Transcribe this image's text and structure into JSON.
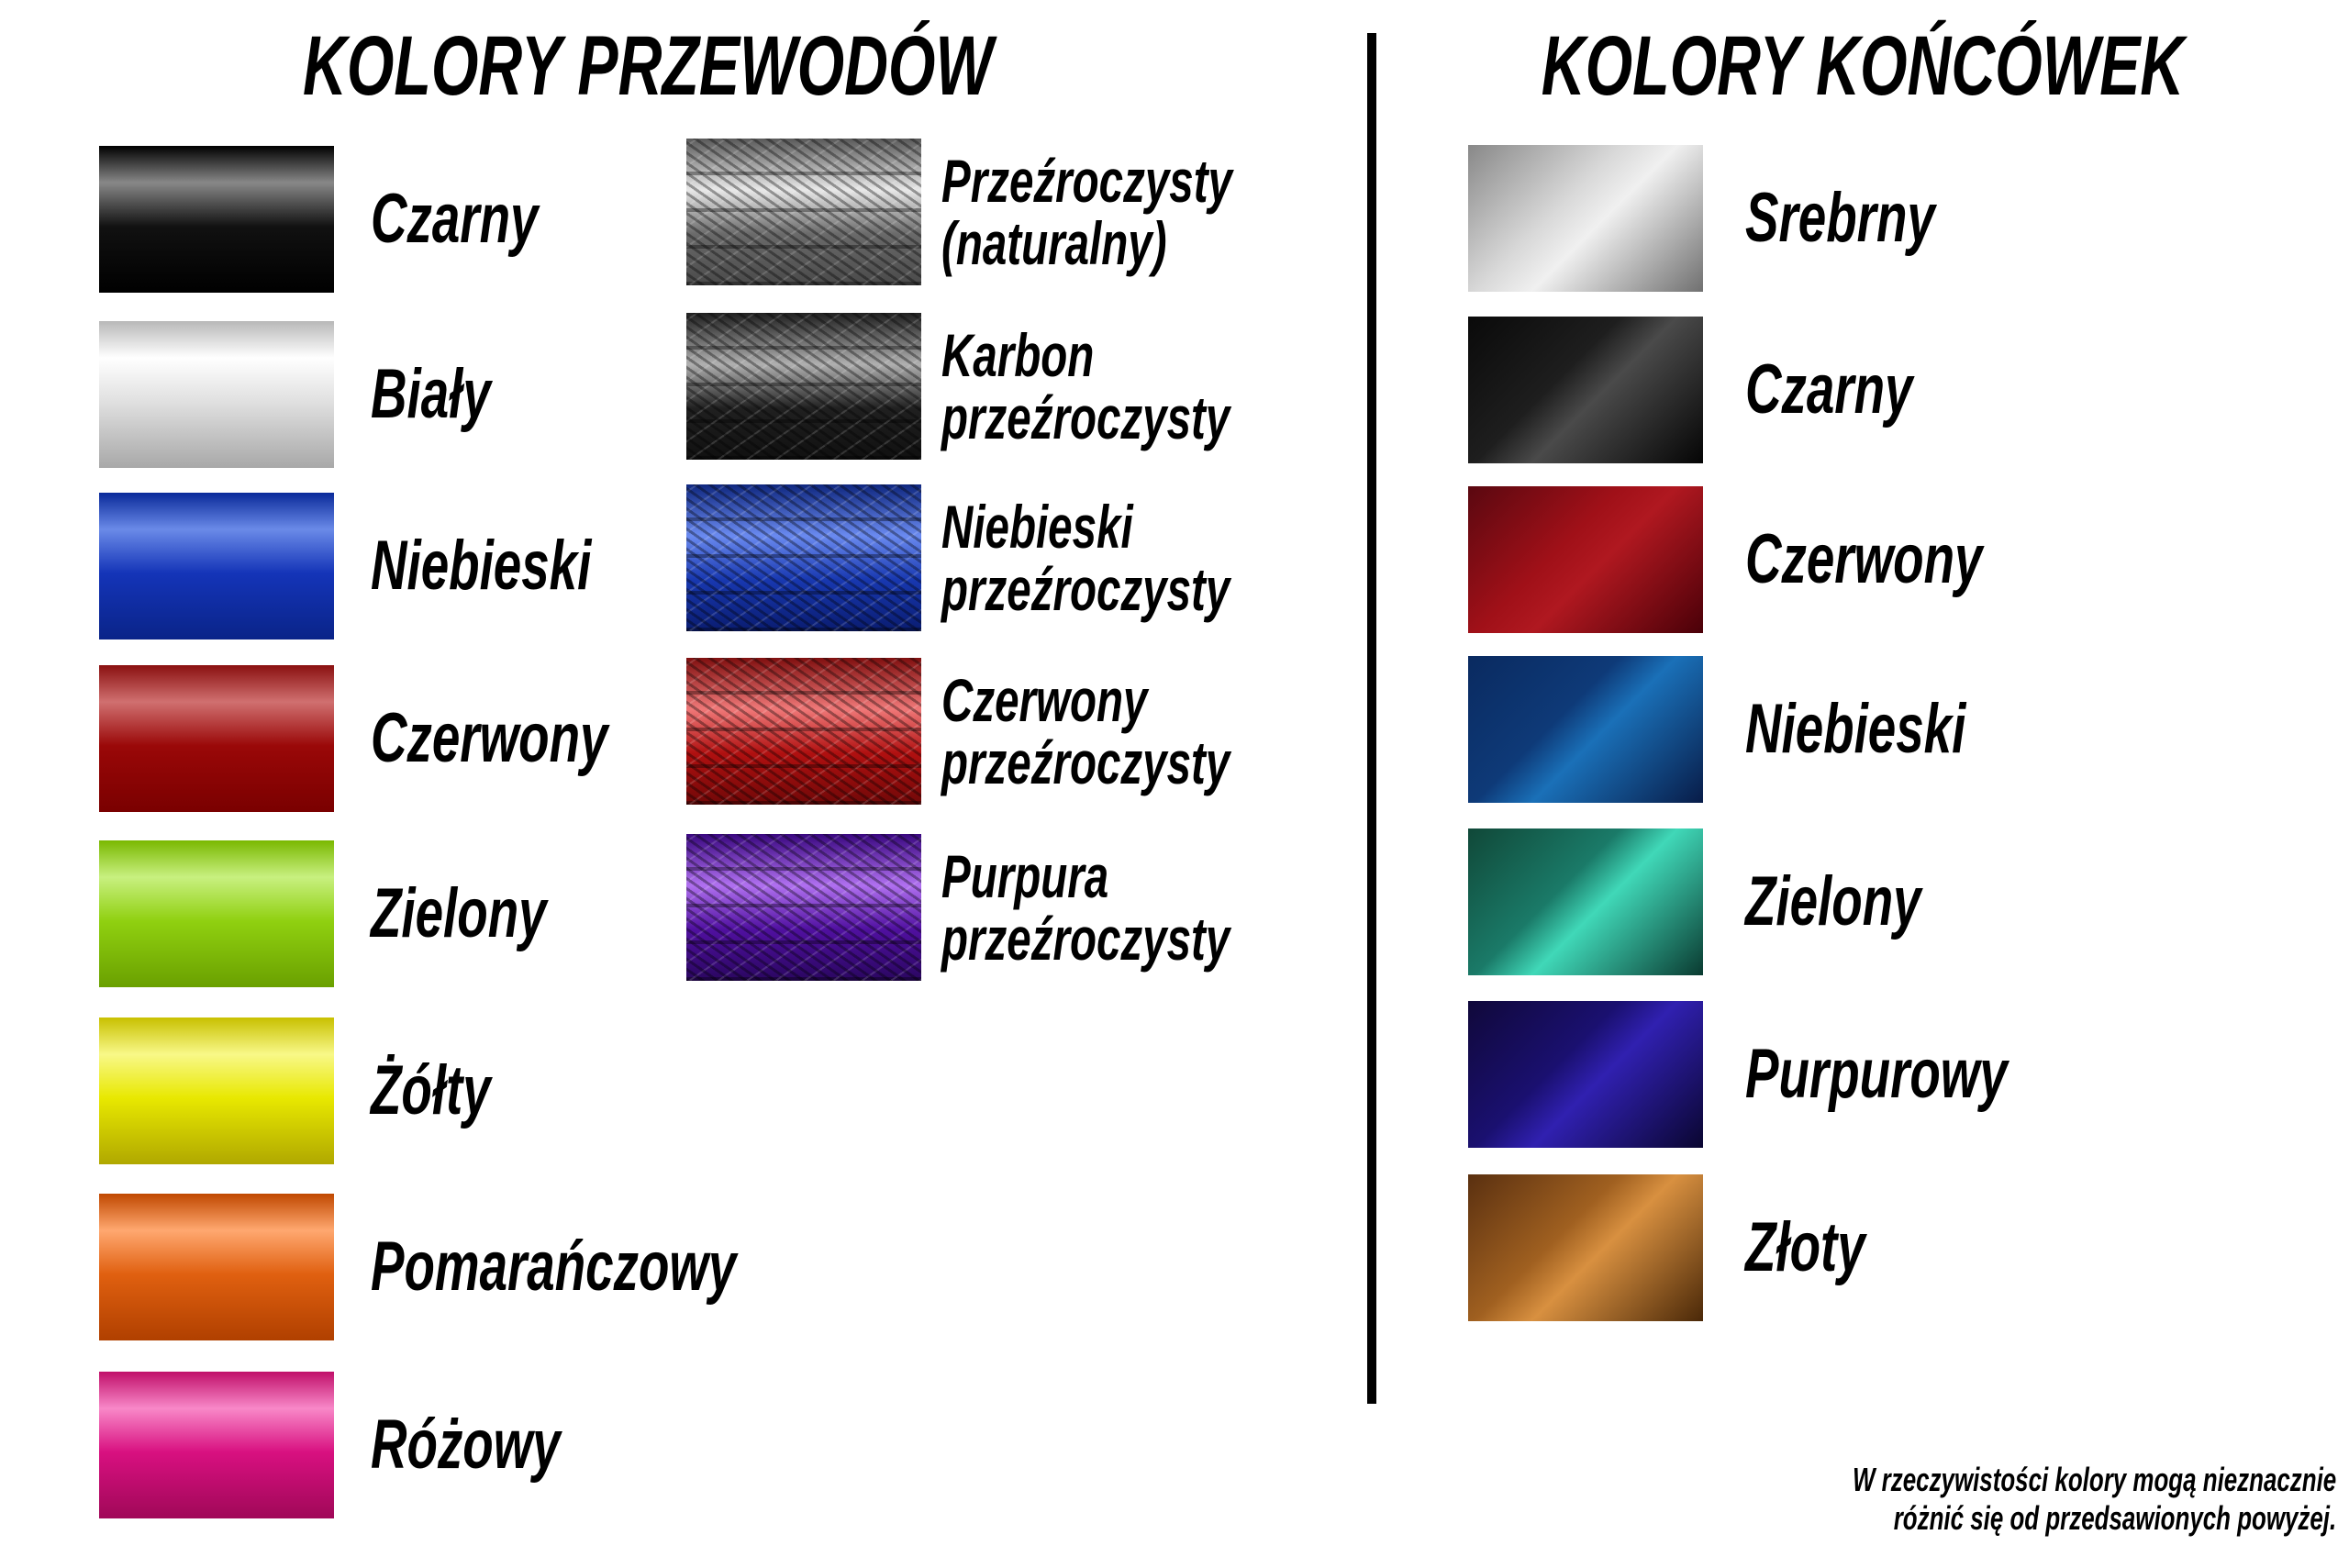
{
  "wires": {
    "title": "KOLORY PRZEWODÓW",
    "solid": [
      {
        "label": "Czarny",
        "colors": [
          "#000000",
          "#888888",
          "#111111",
          "#000000"
        ]
      },
      {
        "label": "Biały",
        "colors": [
          "#b8b8b8",
          "#ffffff",
          "#e0e0e0",
          "#a8a8a8"
        ]
      },
      {
        "label": "Niebieski",
        "colors": [
          "#0a2a9a",
          "#6a8ae8",
          "#1434b8",
          "#0a2488"
        ]
      },
      {
        "label": "Czerwony",
        "colors": [
          "#8a1010",
          "#d07070",
          "#9a0808",
          "#7a0000"
        ]
      },
      {
        "label": "Zielony",
        "colors": [
          "#7ab800",
          "#c8f080",
          "#90d010",
          "#6aa000"
        ]
      },
      {
        "label": "Żółty",
        "colors": [
          "#c8c000",
          "#f8f888",
          "#e8e800",
          "#b0a800"
        ]
      },
      {
        "label": "Pomarańczowy",
        "colors": [
          "#c04800",
          "#ffa870",
          "#e06010",
          "#b04000"
        ]
      },
      {
        "label": "Różowy",
        "colors": [
          "#c0106a",
          "#f888c8",
          "#d81080",
          "#a00858"
        ]
      }
    ],
    "braided": [
      {
        "line1": "Przeźroczysty",
        "line2": "(naturalny)",
        "colors": [
          "#5a5a5a",
          "#e8e8e8",
          "#6a6a6a",
          "#4a4a4a"
        ]
      },
      {
        "line1": "Karbon",
        "line2": "przeźroczysty",
        "colors": [
          "#202020",
          "#b0b0b0",
          "#202020",
          "#101010"
        ]
      },
      {
        "line1": "Niebieski",
        "line2": "przeźroczysty",
        "colors": [
          "#102880",
          "#6a8af0",
          "#1838b0",
          "#0a1c70"
        ]
      },
      {
        "line1": "Czerwony",
        "line2": "przeźroczysty",
        "colors": [
          "#801010",
          "#f07878",
          "#b01010",
          "#700808"
        ]
      },
      {
        "line1": "Purpura",
        "line2": "przeźroczysty",
        "colors": [
          "#3a0880",
          "#b070f0",
          "#5010a0",
          "#2a0660"
        ]
      }
    ]
  },
  "tips": {
    "title": "KOLORY KOŃCÓWEK",
    "items": [
      {
        "label": "Srebrny",
        "colors": [
          "#f0f0f0",
          "#888888",
          "#d8d8d8",
          "#707070"
        ]
      },
      {
        "label": "Czarny",
        "colors": [
          "#4a4a4a",
          "#0a0a0a",
          "#1e1e1e",
          "#050505"
        ]
      },
      {
        "label": "Czerwony",
        "colors": [
          "#b01820",
          "#5a0810",
          "#a01018",
          "#4a0008"
        ]
      },
      {
        "label": "Niebieski",
        "colors": [
          "#1a70b8",
          "#0a2a60",
          "#0e3a78",
          "#081c48"
        ]
      },
      {
        "label": "Zielony",
        "colors": [
          "#40d8b8",
          "#104838",
          "#1a7a68",
          "#0a3a30"
        ]
      },
      {
        "label": "Purpurowy",
        "colors": [
          "#3020b0",
          "#10083a",
          "#1a1070",
          "#0a0630"
        ]
      },
      {
        "label": "Złoty",
        "colors": [
          "#d89040",
          "#5a3010",
          "#a06020",
          "#4a2808"
        ]
      }
    ]
  },
  "footnote": {
    "line1": "W rzeczywistości kolory mogą nieznacznie",
    "line2": "różnić się od przedsawionych powyżej."
  }
}
